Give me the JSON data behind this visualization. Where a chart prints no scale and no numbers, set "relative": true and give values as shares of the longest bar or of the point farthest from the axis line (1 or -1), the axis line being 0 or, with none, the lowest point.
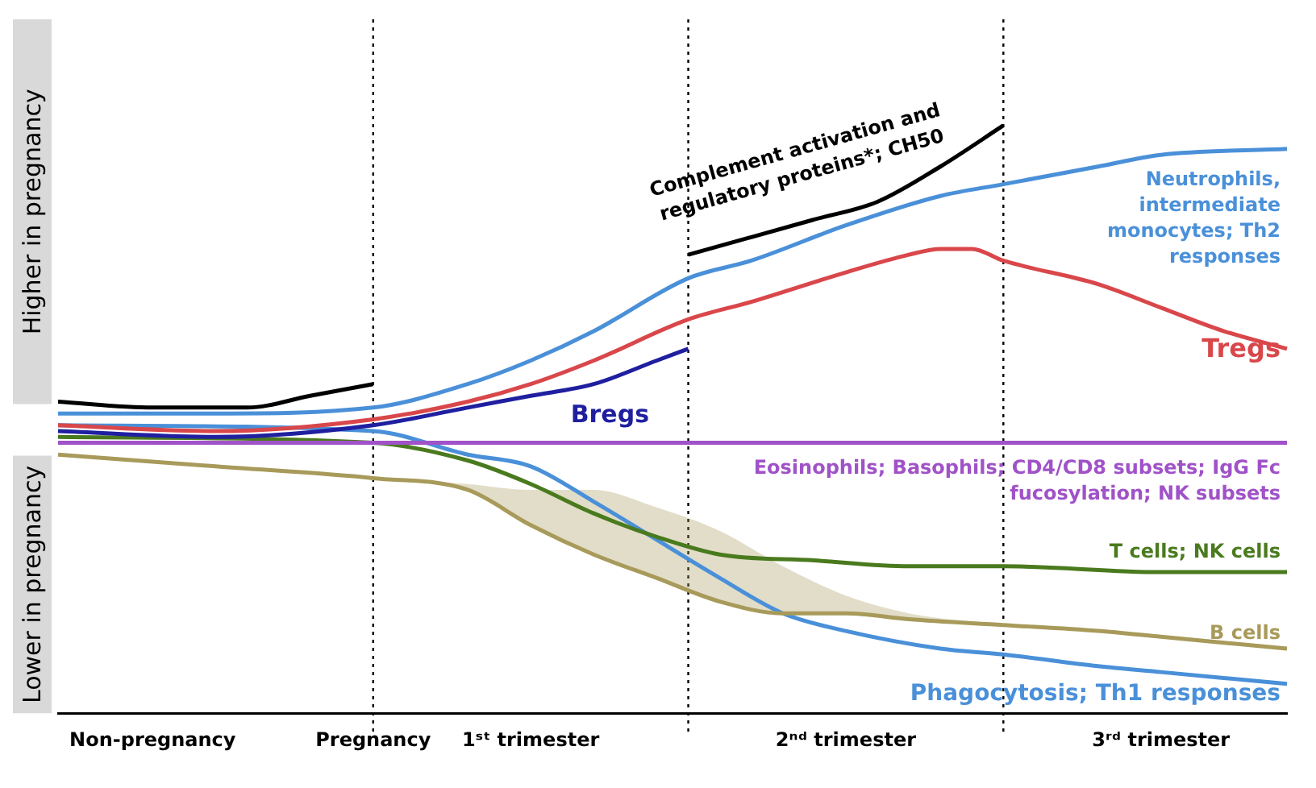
{
  "chart_data": {
    "type": "line",
    "relative": true,
    "legend": false,
    "grid": false,
    "marker": "none",
    "line_style": "solid",
    "categories": [
      null,
      null,
      null,
      "Non-pregnancy",
      null,
      null,
      null,
      null,
      null,
      null,
      "Pregnancy",
      null,
      null,
      null,
      null,
      "1ˢᵗ trimester",
      null,
      null,
      null,
      null,
      null,
      null,
      null,
      null,
      null,
      "2ⁿᵈ trimester",
      null,
      null,
      null,
      null,
      null,
      null,
      null,
      null,
      null,
      "3ʳᵈ trimester",
      null,
      null,
      null,
      null
    ],
    "ref_lines": [
      {
        "axis": "x",
        "value": "Pregnancy",
        "line_style": "dotted",
        "color": "#000000"
      }
    ],
    "annotations": [
      "Higher in pregnancy",
      "Lower in pregnancy"
    ],
    "series": [
      {
        "name": "Eosinophils; Basophils; CD4/CD8 subsets; IgG Fc fucosylation; NK subsets",
        "color": "#a052c8",
        "values": [
          0.46,
          null,
          null,
          null,
          null,
          null,
          null,
          null,
          null,
          null,
          null,
          null,
          null,
          null,
          null,
          null,
          null,
          null,
          null,
          null,
          null,
          null,
          null,
          null,
          null,
          null,
          null,
          null,
          null,
          null,
          null,
          null,
          null,
          null,
          null,
          null,
          null,
          null,
          null,
          0.46
        ]
      },
      {
        "color": "#000000",
        "values": [
          0.53,
          null,
          null,
          0.52,
          null,
          null,
          0.52,
          null,
          0.54,
          null,
          0.56,
          null,
          null,
          null,
          null,
          null,
          null,
          null,
          null,
          null,
          null,
          null,
          null,
          null,
          null,
          null,
          null,
          null,
          null,
          null,
          null,
          null,
          null,
          null,
          null,
          null,
          null,
          null,
          null,
          null
        ]
      },
      {
        "name": "Complement activation and regulatory proteins*; CH50",
        "color": "#000000",
        "values": [
          null,
          null,
          null,
          null,
          null,
          null,
          null,
          null,
          null,
          null,
          null,
          null,
          null,
          null,
          null,
          null,
          null,
          null,
          null,
          null,
          0.78,
          null,
          0.81,
          null,
          0.84,
          null,
          0.87,
          null,
          0.93,
          null,
          1.0,
          null,
          null,
          null,
          null,
          null,
          null,
          null,
          null,
          null
        ]
      },
      {
        "name": "Neutrophils, intermediate monocytes; Th2 responses",
        "color": "#4a90d9",
        "values": [
          0.51,
          null,
          null,
          null,
          null,
          0.51,
          null,
          null,
          null,
          null,
          0.52,
          null,
          null,
          0.56,
          null,
          0.6,
          null,
          0.65,
          null,
          null,
          0.74,
          null,
          0.77,
          null,
          null,
          0.83,
          null,
          null,
          0.88,
          null,
          0.9,
          null,
          null,
          0.93,
          null,
          0.95,
          null,
          null,
          null,
          0.96
        ]
      },
      {
        "name": "Tregs",
        "color": "#d9474b",
        "values": [
          0.49,
          null,
          null,
          null,
          null,
          0.48,
          null,
          null,
          null,
          null,
          0.5,
          null,
          null,
          0.53,
          null,
          0.56,
          null,
          0.6,
          null,
          null,
          0.67,
          null,
          0.7,
          null,
          null,
          0.75,
          null,
          0.78,
          0.79,
          0.79,
          0.77,
          null,
          null,
          0.73,
          null,
          0.69,
          null,
          0.65,
          null,
          0.62
        ]
      },
      {
        "name": "Bregs",
        "color": "#1f1fa0",
        "values": [
          0.48,
          null,
          null,
          null,
          null,
          0.47,
          null,
          null,
          null,
          null,
          0.49,
          null,
          null,
          0.52,
          null,
          0.54,
          null,
          0.56,
          null,
          0.6,
          0.62,
          null,
          null,
          null,
          null,
          null,
          null,
          null,
          null,
          null,
          null,
          null,
          null,
          null,
          null,
          null,
          null,
          null,
          null,
          null
        ]
      },
      {
        "name": "T cells; NK cells",
        "color": "#4a7a1e",
        "values": [
          0.47,
          null,
          null,
          null,
          null,
          null,
          null,
          null,
          null,
          null,
          0.46,
          null,
          null,
          0.43,
          null,
          0.39,
          null,
          0.34,
          null,
          0.3,
          null,
          0.27,
          null,
          null,
          0.26,
          null,
          null,
          0.25,
          null,
          null,
          0.25,
          null,
          null,
          null,
          null,
          0.24,
          null,
          null,
          null,
          0.24
        ]
      },
      {
        "name": "B cells",
        "color": "#a89a5a",
        "values": [
          0.44,
          null,
          null,
          null,
          null,
          0.42,
          null,
          null,
          null,
          null,
          0.4,
          null,
          null,
          0.38,
          null,
          0.32,
          null,
          0.27,
          null,
          0.23,
          null,
          0.19,
          null,
          0.17,
          null,
          0.17,
          null,
          0.16,
          null,
          null,
          0.15,
          null,
          null,
          0.14,
          null,
          0.13,
          null,
          null,
          null,
          0.11
        ],
        "upper": [
          0.44,
          null,
          null,
          null,
          null,
          0.42,
          null,
          null,
          null,
          null,
          0.4,
          null,
          null,
          0.39,
          null,
          0.38,
          null,
          0.38,
          null,
          0.35,
          null,
          0.31,
          null,
          0.25,
          null,
          0.2,
          null,
          0.17,
          null,
          null,
          0.15,
          null,
          null,
          null,
          null,
          null,
          null,
          null,
          null,
          null
        ],
        "lower": [
          0.44,
          null,
          null,
          null,
          null,
          0.42,
          null,
          null,
          null,
          null,
          0.4,
          null,
          null,
          0.38,
          null,
          0.32,
          null,
          0.27,
          null,
          0.23,
          null,
          0.19,
          null,
          0.17,
          null,
          0.17,
          null,
          0.16,
          null,
          null,
          0.15,
          null,
          null,
          null,
          null,
          null,
          null,
          null,
          null,
          null
        ]
      },
      {
        "name": "Phagocytosis; Th1 responses",
        "color": "#4a90d9",
        "values": [
          0.49,
          null,
          null,
          null,
          null,
          null,
          null,
          null,
          null,
          null,
          0.48,
          null,
          null,
          0.44,
          null,
          0.42,
          null,
          0.36,
          null,
          null,
          null,
          0.23,
          null,
          0.17,
          null,
          0.14,
          null,
          null,
          0.11,
          null,
          0.1,
          null,
          null,
          0.08,
          null,
          0.07,
          null,
          null,
          null,
          0.05
        ]
      }
    ]
  }
}
